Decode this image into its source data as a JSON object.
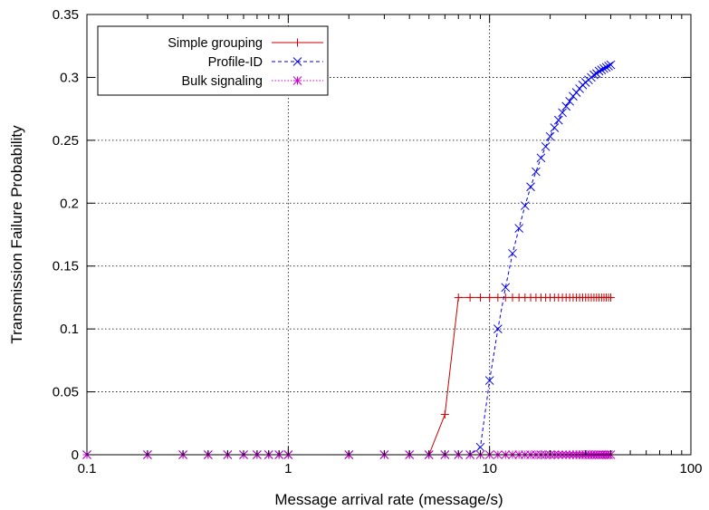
{
  "chart_data": {
    "type": "line",
    "xlabel": "Message arrival rate (message/s)",
    "ylabel": "Transmission Failure Probability",
    "x_scale": "log",
    "xlim": [
      0.1,
      100
    ],
    "ylim": [
      0,
      0.35
    ],
    "x_ticks": [
      {
        "value": 0.1,
        "label": "0.1"
      },
      {
        "value": 1,
        "label": "1"
      },
      {
        "value": 10,
        "label": "10"
      },
      {
        "value": 100,
        "label": "100"
      }
    ],
    "y_ticks": [
      {
        "value": 0,
        "label": "0"
      },
      {
        "value": 0.05,
        "label": "0.05"
      },
      {
        "value": 0.1,
        "label": "0.1"
      },
      {
        "value": 0.15,
        "label": "0.15"
      },
      {
        "value": 0.2,
        "label": "0.2"
      },
      {
        "value": 0.25,
        "label": "0.25"
      },
      {
        "value": 0.3,
        "label": "0.3"
      },
      {
        "value": 0.35,
        "label": "0.35"
      }
    ],
    "grid": true,
    "legend_position": "top-left",
    "series": [
      {
        "name": "Simple grouping",
        "color": "#cc0000",
        "marker": "plus",
        "line": "solid",
        "x": [
          0.1,
          0.2,
          0.3,
          0.4,
          0.5,
          0.6,
          0.7,
          0.8,
          0.9,
          1,
          2,
          3,
          4,
          5,
          6,
          7,
          8,
          9,
          10,
          11,
          12,
          13,
          14,
          15,
          16,
          17,
          18,
          19,
          20,
          21,
          22,
          23,
          24,
          25,
          26,
          27,
          28,
          29,
          30,
          31,
          32,
          33,
          34,
          35,
          36,
          37,
          38,
          39,
          40
        ],
        "y": [
          0,
          0,
          0,
          0,
          0,
          0,
          0,
          0,
          0,
          0,
          0,
          0,
          0,
          0,
          0.032,
          0.125,
          0.125,
          0.125,
          0.125,
          0.125,
          0.125,
          0.125,
          0.125,
          0.125,
          0.125,
          0.125,
          0.125,
          0.125,
          0.125,
          0.125,
          0.125,
          0.125,
          0.125,
          0.125,
          0.125,
          0.125,
          0.125,
          0.125,
          0.125,
          0.125,
          0.125,
          0.125,
          0.125,
          0.125,
          0.125,
          0.125,
          0.125,
          0.125,
          0.125
        ]
      },
      {
        "name": "Profile-ID",
        "color": "#0000ee",
        "marker": "cross",
        "line": "dashed",
        "x": [
          0.1,
          0.2,
          0.3,
          0.4,
          0.5,
          0.6,
          0.7,
          0.8,
          0.9,
          1,
          2,
          3,
          4,
          5,
          6,
          7,
          8,
          9,
          10,
          11,
          12,
          13,
          14,
          15,
          16,
          17,
          18,
          19,
          20,
          21,
          22,
          23,
          24,
          25,
          26,
          27,
          28,
          29,
          30,
          31,
          32,
          33,
          34,
          35,
          36,
          37,
          38,
          39,
          40
        ],
        "y": [
          0,
          0,
          0,
          0,
          0,
          0,
          0,
          0,
          0,
          0,
          0,
          0,
          0,
          0,
          0,
          0,
          0,
          0.006,
          0.059,
          0.1,
          0.133,
          0.16,
          0.18,
          0.198,
          0.213,
          0.225,
          0.236,
          0.245,
          0.253,
          0.26,
          0.266,
          0.272,
          0.277,
          0.281,
          0.285,
          0.288,
          0.291,
          0.294,
          0.296,
          0.298,
          0.3,
          0.302,
          0.303,
          0.305,
          0.306,
          0.307,
          0.308,
          0.309,
          0.31
        ]
      },
      {
        "name": "Bulk signaling",
        "color": "#cc00cc",
        "marker": "star",
        "line": "dotted",
        "x": [
          0.1,
          0.2,
          0.3,
          0.4,
          0.5,
          0.6,
          0.7,
          0.8,
          0.9,
          1,
          2,
          3,
          4,
          5,
          6,
          7,
          8,
          9,
          10,
          11,
          12,
          13,
          14,
          15,
          16,
          17,
          18,
          19,
          20,
          21,
          22,
          23,
          24,
          25,
          26,
          27,
          28,
          29,
          30,
          31,
          32,
          33,
          34,
          35,
          36,
          37,
          38,
          39,
          40
        ],
        "y": [
          0,
          0,
          0,
          0,
          0,
          0,
          0,
          0,
          0,
          0,
          0,
          0,
          0,
          0,
          0,
          0,
          0,
          0,
          0,
          0,
          0,
          0,
          0,
          0,
          0,
          0,
          0,
          0,
          0,
          0,
          0,
          0,
          0,
          0,
          0,
          0,
          0,
          0,
          0,
          0,
          0,
          0,
          0,
          0,
          0,
          0,
          0,
          0,
          0
        ]
      }
    ]
  }
}
